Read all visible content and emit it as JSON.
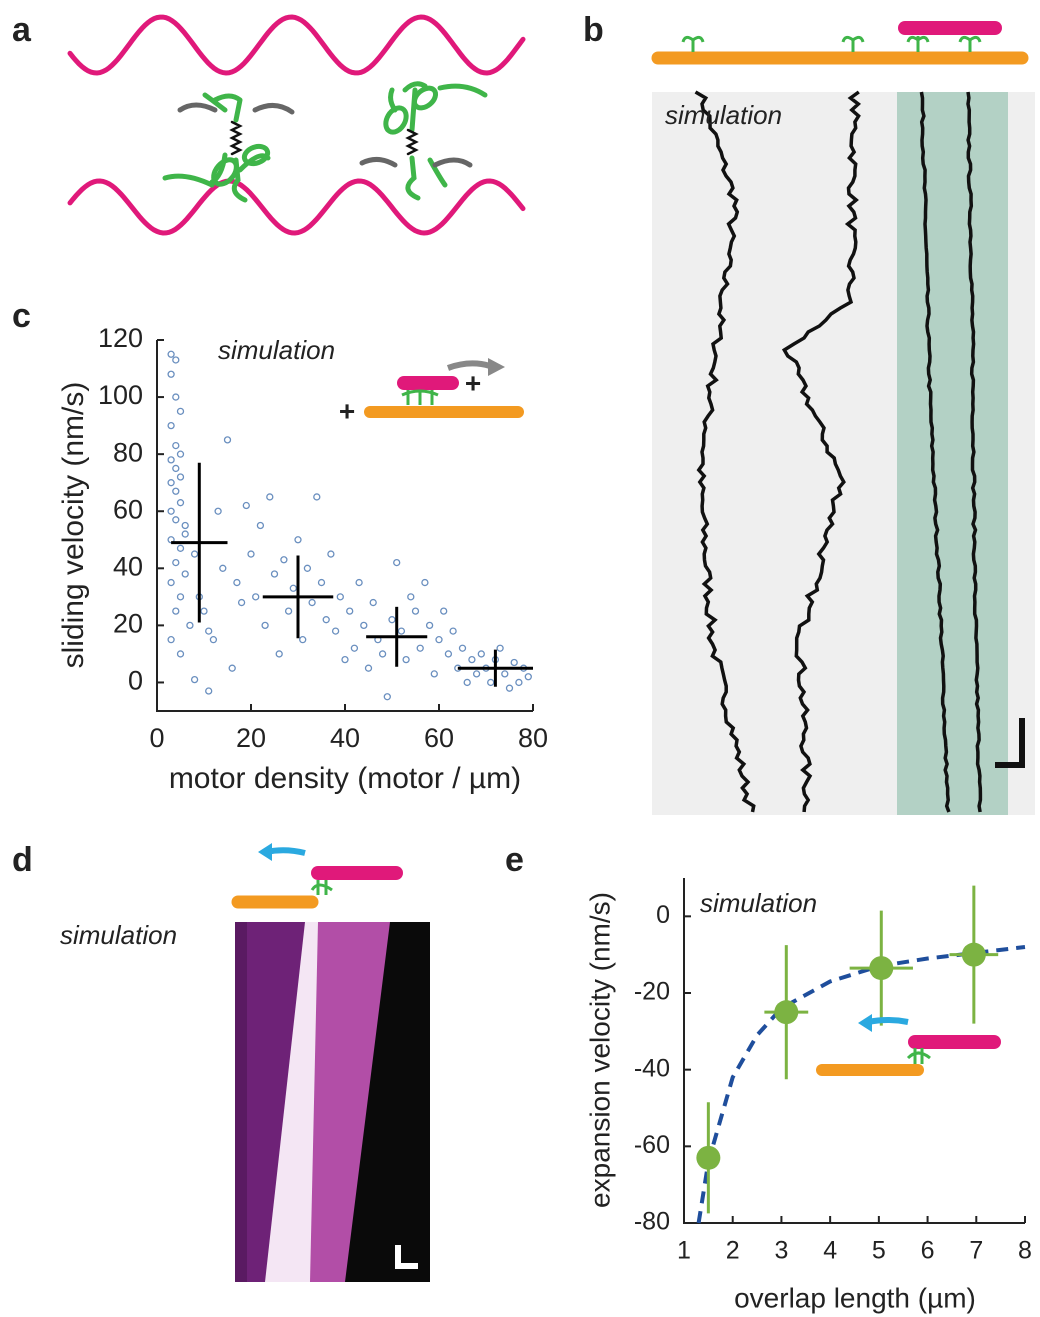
{
  "panels": [
    {
      "label": "a"
    },
    {
      "label": "b",
      "annotation": "simulation"
    },
    {
      "label": "d",
      "annotation": "simulation"
    }
  ],
  "chart_data": [
    {
      "type": "scatter",
      "panel": "c",
      "annotation": "simulation",
      "inset_labels": [
        "+",
        "+"
      ],
      "xlabel": "motor density (motor / µm)",
      "ylabel": "sliding velocity (nm/s)",
      "xlim": [
        0,
        80
      ],
      "ylim": [
        -10,
        120
      ],
      "xticks": [
        0,
        20,
        40,
        60,
        80
      ],
      "yticks": [
        0,
        20,
        40,
        60,
        80,
        100,
        120
      ],
      "series": [
        {
          "color": "#6a8fbf",
          "marker": "open",
          "x": [
            3,
            4,
            3,
            4,
            5,
            3,
            4,
            5,
            3,
            4,
            5,
            3,
            4,
            5,
            3,
            4,
            6,
            3,
            5,
            4,
            6,
            3,
            5,
            4,
            7,
            3,
            5,
            6,
            8,
            9,
            10,
            11,
            12,
            8,
            11,
            13,
            14,
            15,
            16,
            17,
            18,
            19,
            20,
            21,
            22,
            23,
            24,
            25,
            26,
            27,
            28,
            29,
            30,
            31,
            32,
            33,
            34,
            35,
            36,
            37,
            38,
            39,
            40,
            41,
            42,
            43,
            44,
            45,
            46,
            47,
            48,
            49,
            50,
            51,
            52,
            53,
            54,
            55,
            56,
            57,
            58,
            59,
            60,
            61,
            62,
            63,
            64,
            65,
            66,
            67,
            68,
            69,
            70,
            71,
            72,
            73,
            74,
            75,
            76,
            77,
            78,
            79
          ],
          "y": [
            115,
            113,
            108,
            100,
            95,
            90,
            83,
            80,
            78,
            75,
            72,
            70,
            67,
            63,
            60,
            57,
            55,
            50,
            47,
            42,
            38,
            35,
            30,
            25,
            20,
            15,
            10,
            52,
            45,
            30,
            25,
            18,
            15,
            1,
            -3,
            60,
            40,
            85,
            5,
            35,
            28,
            62,
            45,
            30,
            55,
            20,
            65,
            38,
            10,
            43,
            25,
            33,
            50,
            15,
            40,
            28,
            65,
            35,
            22,
            45,
            18,
            30,
            8,
            25,
            12,
            35,
            20,
            5,
            28,
            15,
            10,
            -5,
            22,
            42,
            18,
            8,
            30,
            25,
            12,
            35,
            20,
            3,
            15,
            25,
            10,
            18,
            5,
            12,
            0,
            8,
            3,
            10,
            5,
            0,
            8,
            12,
            3,
            -2,
            7,
            0,
            5,
            2
          ]
        },
        {
          "color": "#000000",
          "marker": "cross",
          "x": [
            9,
            30,
            51,
            72
          ],
          "y": [
            49,
            30,
            16,
            5
          ],
          "xerr": [
            6,
            7.5,
            6.5,
            8
          ],
          "yerr": [
            28,
            14.5,
            10.5,
            6.5
          ]
        }
      ]
    },
    {
      "type": "scatter",
      "panel": "e",
      "annotation": "simulation",
      "xlabel": "overlap length (µm)",
      "ylabel": "expansion velocity (nm/s)",
      "xlim": [
        1,
        8
      ],
      "ylim": [
        -80,
        10
      ],
      "xticks": [
        1,
        2,
        3,
        4,
        5,
        6,
        7,
        8
      ],
      "yticks": [
        -80,
        -60,
        -40,
        -20,
        0
      ],
      "series": [
        {
          "color": "#1f4e9c",
          "marker": "dashed-line",
          "x": [
            1.3,
            1.5,
            2,
            2.5,
            3,
            4,
            5,
            6,
            7,
            8
          ],
          "y": [
            -80,
            -64,
            -42,
            -31,
            -24,
            -17,
            -13,
            -11,
            -9.5,
            -8
          ]
        },
        {
          "color": "#7cb342",
          "marker": "filled",
          "x": [
            1.5,
            3.1,
            5.05,
            6.95
          ],
          "y": [
            -63,
            -25,
            -13.5,
            -10
          ],
          "xerr": [
            0,
            0.45,
            0.65,
            0.5
          ],
          "yerr": [
            14.5,
            17.5,
            15,
            18
          ]
        }
      ]
    }
  ]
}
